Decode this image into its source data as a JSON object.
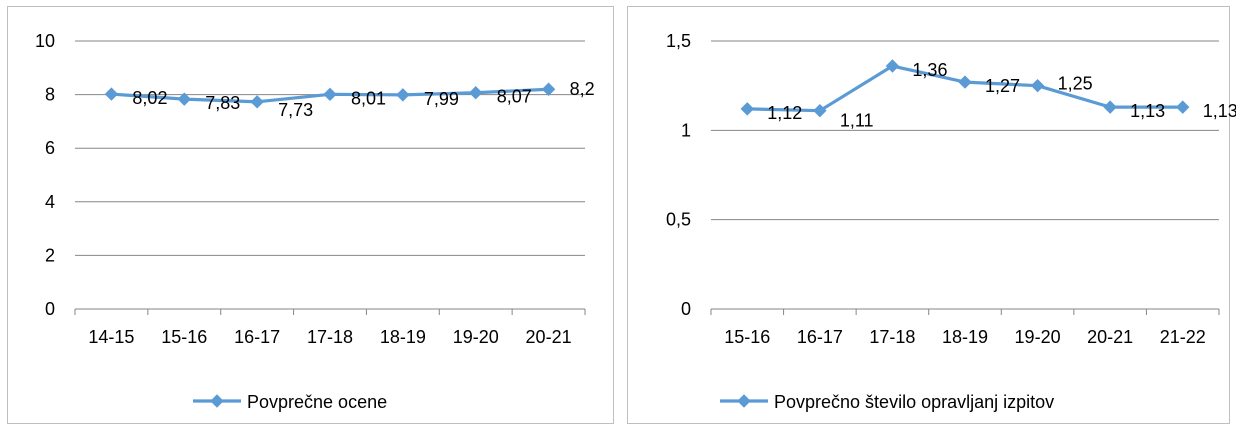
{
  "chart_data": [
    {
      "type": "line",
      "categories": [
        "14-15",
        "15-16",
        "16-17",
        "17-18",
        "18-19",
        "19-20",
        "20-21"
      ],
      "series": [
        {
          "name": "Povprečne ocene",
          "values": [
            8.02,
            7.83,
            7.73,
            8.01,
            7.99,
            8.07,
            8.2
          ],
          "labels": [
            "8,02",
            "7,83",
            "7,73",
            "8,01",
            "7,99",
            "8,07",
            "8,2"
          ],
          "color": "#5b9bd5"
        }
      ],
      "ylim": [
        0,
        10
      ],
      "yticks": [
        0,
        2,
        4,
        6,
        8,
        10
      ],
      "ytick_labels": [
        "0",
        "2",
        "4",
        "6",
        "8",
        "10"
      ],
      "grid": true,
      "legend_position": "bottom"
    },
    {
      "type": "line",
      "categories": [
        "15-16",
        "16-17",
        "17-18",
        "18-19",
        "19-20",
        "20-21",
        "21-22"
      ],
      "series": [
        {
          "name": "Povprečno število opravljanj izpitov",
          "values": [
            1.12,
            1.11,
            1.36,
            1.27,
            1.25,
            1.13,
            1.13
          ],
          "labels": [
            "1,12",
            "1,11",
            "1,36",
            "1,27",
            "1,25",
            "1,13",
            "1,13"
          ],
          "color": "#5b9bd5"
        }
      ],
      "ylim": [
        0,
        1.5
      ],
      "yticks": [
        0,
        0.5,
        1,
        1.5
      ],
      "ytick_labels": [
        "0",
        "0,5",
        "1",
        "1,5"
      ],
      "grid": true,
      "legend_position": "bottom"
    }
  ]
}
